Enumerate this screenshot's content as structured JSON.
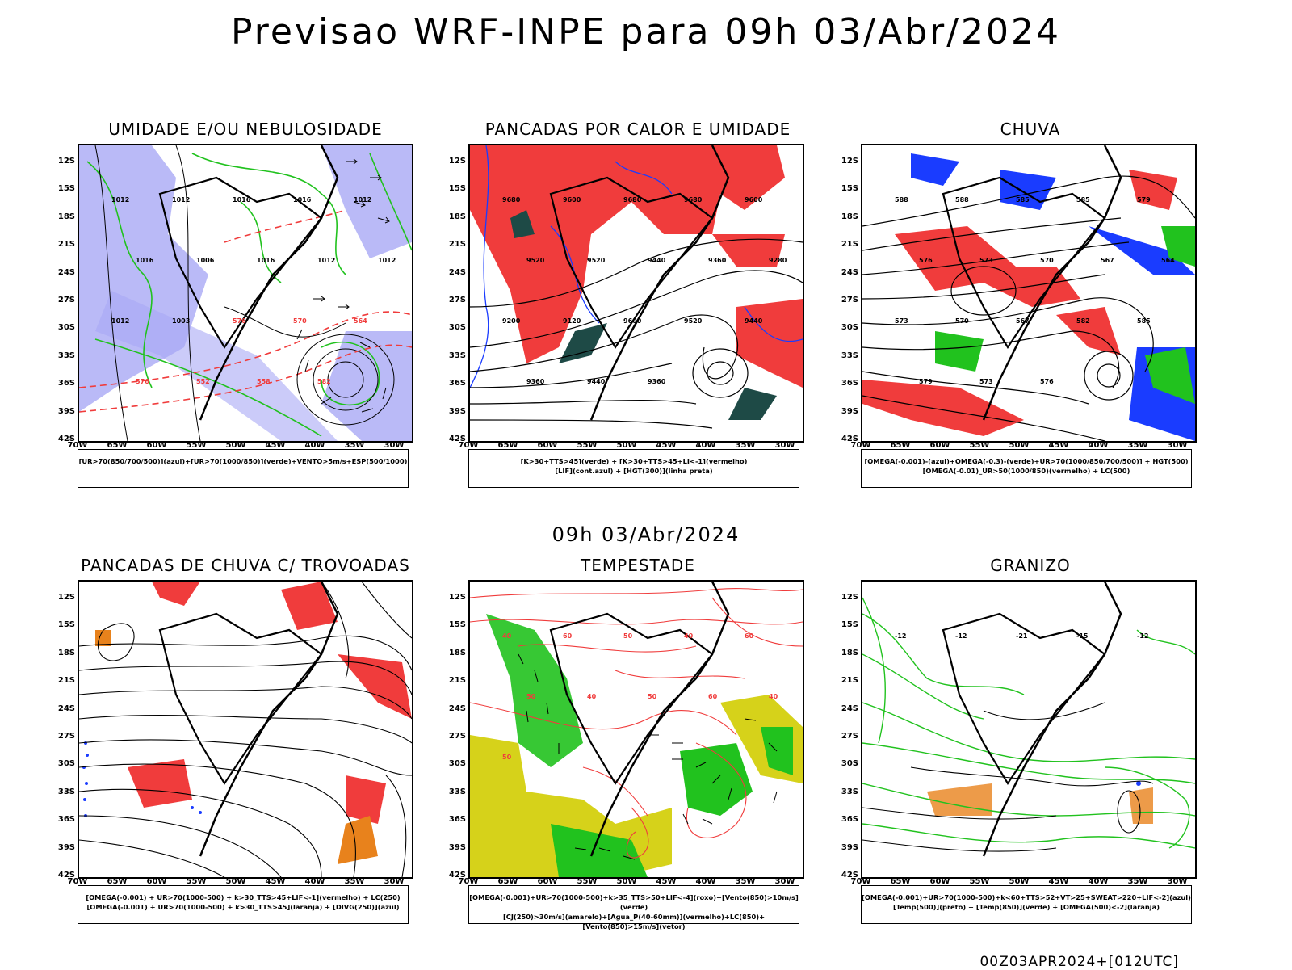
{
  "header": {
    "title": "Previsao WRF-INPE  para 09h 03/Abr/2024"
  },
  "middle": {
    "title": "09h 03/Abr/2024"
  },
  "footer": {
    "code": "00Z03APR2024+[012UTC]"
  },
  "axes": {
    "lat_labels": [
      "12S",
      "15S",
      "18S",
      "21S",
      "24S",
      "27S",
      "30S",
      "33S",
      "36S",
      "39S",
      "42S"
    ],
    "lon_labels": [
      "70W",
      "65W",
      "60W",
      "55W",
      "50W",
      "45W",
      "40W",
      "35W",
      "30W"
    ]
  },
  "colors": {
    "red": "#f03c3c",
    "green": "#21c21e",
    "blue": "#1a3cff",
    "lavender": "#a9a9f5",
    "darkteal": "#1e4a46",
    "yellow": "#d6d21a",
    "orange": "#e8821c"
  },
  "panels": [
    {
      "title": "UMIDADE E/OU NEBULOSIDADE",
      "legend": [
        "[UR>70(850/700/500)](azul)+[UR>70(1000/850)](verde)+VENTO>5m/s+ESP(500/1000)"
      ],
      "labels": [
        "1012",
        "1012",
        "1016",
        "1016",
        "1012",
        "1016",
        "1006",
        "1016",
        "1012",
        "1012",
        "1012",
        "1003",
        "576",
        "570",
        "564",
        "576",
        "552",
        "558",
        "582"
      ]
    },
    {
      "title": "PANCADAS POR CALOR E UMIDADE",
      "legend": [
        "[K>30+TTS>45](verde) + [K>30+TTS>45+LI<-1](vermelho)",
        "[LIF](cont.azul) + [HGT(300)](linha preta)"
      ],
      "labels": [
        "9680",
        "9600",
        "9680",
        "9680",
        "9600",
        "9520",
        "9520",
        "9440",
        "9360",
        "9280",
        "9200",
        "9120",
        "9600",
        "9520",
        "9440",
        "9360",
        "9440",
        "9360"
      ]
    },
    {
      "title": "CHUVA",
      "legend": [
        "[OMEGA(-0.001)-(azul)+OMEGA(-0.3)-(verde)+UR>70(1000/850/700/500)] + HGT(500)",
        "[OMEGA(-0.01)_UR>50(1000/850)(vermelho) + LC(500)"
      ],
      "labels": [
        "588",
        "588",
        "585",
        "585",
        "579",
        "576",
        "573",
        "570",
        "567",
        "564",
        "573",
        "570",
        "567",
        "582",
        "585",
        "579",
        "573",
        "576"
      ]
    },
    {
      "title": "PANCADAS DE CHUVA C/ TROVOADAS",
      "legend": [
        "[OMEGA(-0.001) + UR>70(1000-500) + k>30_TTS>45+LIF<-1](vermelho) + LC(250)",
        "[OMEGA(-0.001) + UR>70(1000-500) + k>30_TTS>45](laranja) + [DIVG(250)](azul)"
      ],
      "labels": []
    },
    {
      "title": "TEMPESTADE",
      "legend": [
        "[OMEGA(-0.001)+UR>70(1000-500)+k>35_TTS>50+LIF<-4](roxo)+[Vento(850)>10m/s](verde)",
        "[CJ(250)>30m/s](amarelo)+[Agua_P(40-60mm)](vermelho)+LC(850)+[Vento(850)>15m/s](vetor)"
      ],
      "labels": [
        "40",
        "60",
        "50",
        "40",
        "60",
        "50",
        "40",
        "50",
        "60",
        "40",
        "50"
      ]
    },
    {
      "title": "GRANIZO",
      "legend": [
        "[OMEGA(-0.001)+UR>70(1000-500)+k<60+TTS>52+VT>25+SWEAT>220+LIF<-2](azul)",
        "[Temp(500)](preto) + [Temp(850)](verde) + [OMEGA(500)<-2](laranja)"
      ],
      "labels": [
        "-12",
        "-12",
        "-21",
        "-15",
        "-12"
      ]
    }
  ]
}
